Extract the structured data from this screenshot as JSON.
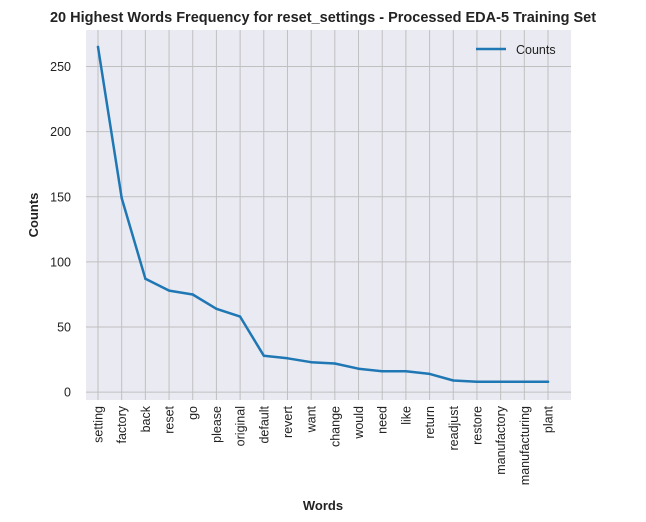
{
  "chart_data": {
    "type": "line",
    "title": "20 Highest Words Frequency for reset_settings - Processed EDA-5 Training Set",
    "xlabel": "Words",
    "ylabel": "Counts",
    "categories": [
      "setting",
      "factory",
      "back",
      "reset",
      "go",
      "please",
      "original",
      "default",
      "revert",
      "want",
      "change",
      "would",
      "need",
      "like",
      "return",
      "readjust",
      "restore",
      "manufactory",
      "manufacturing",
      "plant"
    ],
    "series": [
      {
        "name": "Counts",
        "values": [
          265,
          149,
          87,
          78,
          75,
          64,
          58,
          28,
          26,
          23,
          22,
          18,
          16,
          16,
          14,
          9,
          8,
          8,
          8,
          8
        ]
      }
    ],
    "ylim": [
      -6,
      278
    ],
    "yticks": [
      0,
      50,
      100,
      150,
      200,
      250
    ],
    "grid": true,
    "legend_position": "top-right",
    "colors": {
      "line": "#1f77b4",
      "plot_background": "#eaeaf2",
      "grid": "#c0c0c0"
    }
  }
}
